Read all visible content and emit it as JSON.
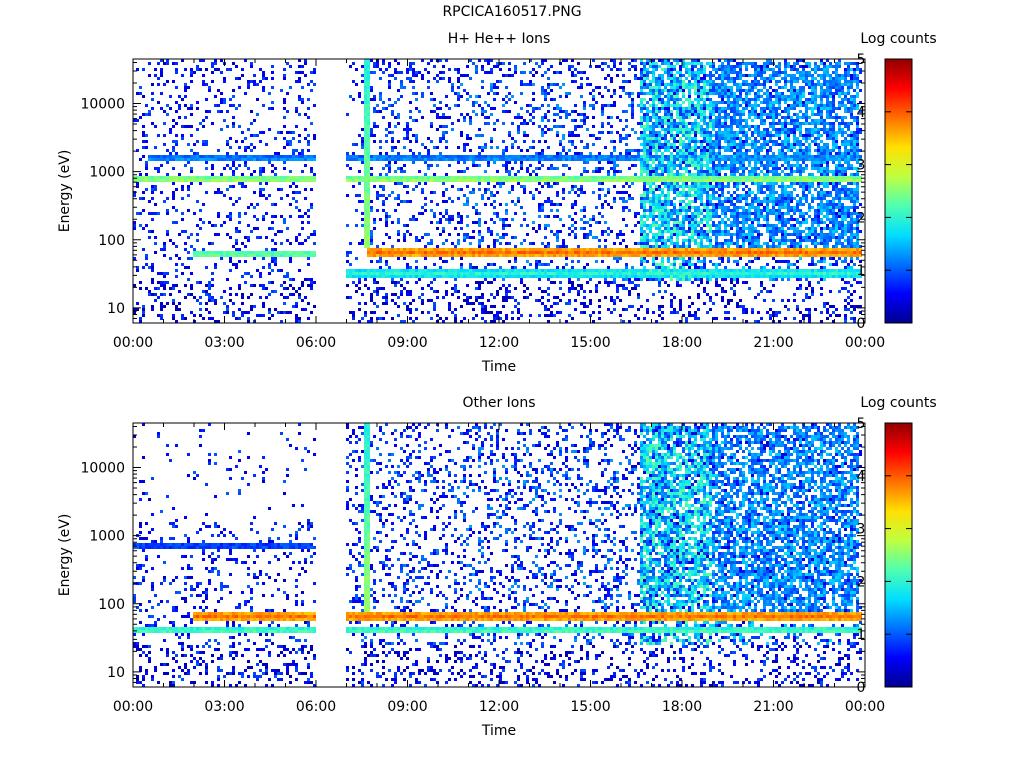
{
  "figure_title": "RPCICA160517.PNG",
  "colors": {
    "axis": "#000000",
    "background": "#ffffff",
    "colormap": [
      "#00008f",
      "#0000ff",
      "#0070ff",
      "#00dfff",
      "#50ffaf",
      "#bfff40",
      "#ffe000",
      "#ff7000",
      "#ff0000",
      "#8f0000"
    ]
  },
  "chart_data": [
    {
      "type": "heatmap",
      "title": "H+ He++ Ions",
      "xlabel": "Time",
      "ylabel": "Energy (eV)",
      "x_ticks": [
        "00:00",
        "03:00",
        "06:00",
        "09:00",
        "12:00",
        "15:00",
        "18:00",
        "21:00",
        "00:00"
      ],
      "xlim_hours": [
        0,
        24
      ],
      "y_scale": "log",
      "ylim": [
        6,
        45000
      ],
      "y_ticks": [
        "10",
        "100",
        "1000",
        "10000"
      ],
      "colorbar": {
        "label": "Log counts",
        "range": [
          0,
          5
        ],
        "ticks": [
          "0",
          "1",
          "2",
          "3",
          "4",
          "5"
        ]
      },
      "data_gaps_hours": [
        [
          6.0,
          7.0
        ],
        [
          23.9,
          24
        ]
      ],
      "features": [
        {
          "name": "dense band",
          "start_h": 7.7,
          "end_h": 23.9,
          "energy_ev": 65,
          "log_counts": 3.9
        },
        {
          "name": "dense band",
          "start_h": 2.0,
          "end_h": 6.0,
          "energy_ev": 62,
          "log_counts": 2.4
        },
        {
          "name": "band",
          "start_h": 0.0,
          "end_h": 23.9,
          "energy_ev": 750,
          "log_counts": 2.6
        },
        {
          "name": "band",
          "start_h": 0.5,
          "end_h": 23.9,
          "energy_ev": 1550,
          "log_counts": 1.3
        },
        {
          "name": "band",
          "start_h": 7.0,
          "end_h": 23.9,
          "energy_ev": 32,
          "log_counts": 2.0
        },
        {
          "name": "spike",
          "time_h": 7.7,
          "log_counts": 2.6
        }
      ]
    },
    {
      "type": "heatmap",
      "title": "Other Ions",
      "xlabel": "Time",
      "ylabel": "Energy (eV)",
      "x_ticks": [
        "00:00",
        "03:00",
        "06:00",
        "09:00",
        "12:00",
        "15:00",
        "18:00",
        "21:00",
        "00:00"
      ],
      "xlim_hours": [
        0,
        24
      ],
      "y_scale": "log",
      "ylim": [
        6,
        45000
      ],
      "y_ticks": [
        "10",
        "100",
        "1000",
        "10000"
      ],
      "colorbar": {
        "label": "Log counts",
        "range": [
          0,
          5
        ],
        "ticks": [
          "0",
          "1",
          "2",
          "3",
          "4",
          "5"
        ]
      },
      "data_gaps_hours": [
        [
          6.0,
          7.0
        ],
        [
          23.9,
          24
        ]
      ],
      "features": [
        {
          "name": "dense band",
          "start_h": 2.0,
          "end_h": 23.9,
          "energy_ev": 65,
          "log_counts": 3.9
        },
        {
          "name": "band",
          "start_h": 0.0,
          "end_h": 23.9,
          "energy_ev": 40,
          "log_counts": 2.2
        },
        {
          "name": "band",
          "start_h": 0.0,
          "end_h": 5.9,
          "energy_ev": 700,
          "log_counts": 1.0
        },
        {
          "name": "spike",
          "time_h": 7.7,
          "log_counts": 2.6
        }
      ]
    }
  ]
}
